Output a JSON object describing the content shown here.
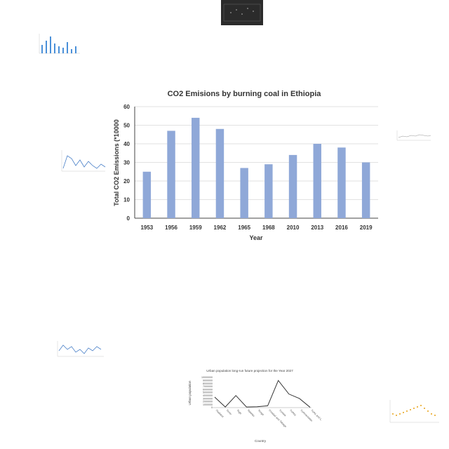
{
  "chart_data": [
    {
      "type": "bar",
      "title": "CO2 Emisions by burning coal in Ethiopia",
      "xlabel": "Year",
      "ylabel": "Total CO2 Emissions (*10000",
      "categories": [
        "1953",
        "1956",
        "1959",
        "1962",
        "1965",
        "1968",
        "2010",
        "2013",
        "2016",
        "2019"
      ],
      "values": [
        25,
        47,
        54,
        48,
        27,
        29,
        34,
        40,
        38,
        30
      ],
      "ylim": [
        0,
        60
      ],
      "yticks": [
        "0",
        "10",
        "20",
        "30",
        "40",
        "50",
        "60"
      ],
      "grid": true,
      "bar_color": "#8fa8d8"
    },
    {
      "type": "line",
      "title": "Urban population long-run future projection for the Year 2027",
      "xlabel": "Country",
      "ylabel": "Urban population",
      "categories": [
        "Thailand",
        "Timor",
        "Togo",
        "Tokelau",
        "Tonga",
        "Trinidad and Tobago",
        "Tunisia",
        "Turkey",
        "Turkmenistan",
        "Turks and Caicos Islands"
      ],
      "values": [
        3500000,
        200000,
        4000000,
        200000,
        300000,
        600000,
        9000000,
        4500000,
        3000000,
        100000
      ],
      "ylim": [
        0,
        10000000
      ],
      "yticks": [
        "0",
        "1000000",
        "2000000",
        "3000000",
        "4000000",
        "5000000",
        "6000000",
        "7000000",
        "8000000",
        "9000000",
        "10000000"
      ],
      "line_color": "#333333"
    }
  ]
}
